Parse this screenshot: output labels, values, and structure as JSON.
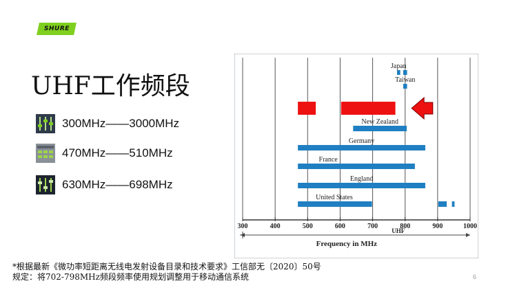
{
  "logo": {
    "text": "SHURE"
  },
  "slide": {
    "title": "UHF工作频段",
    "bands": [
      {
        "label": "300MHz——3000MHz",
        "icon": "mixer-sliders-icon"
      },
      {
        "label": "470MHz——510MHz",
        "icon": "frequency-grid-icon"
      },
      {
        "label": "630MHz——698MHz",
        "icon": "mixer-sliders-dark-icon"
      }
    ],
    "footnote_lines": [
      "*根据最新《微功率短距离无线电发射设备目录和技术要求》工信部无〔2020〕50号",
      "规定：将702-798MHz频段频率使用规划调整用于移动通信系统"
    ],
    "page_number": "6"
  },
  "chart_data": {
    "type": "bar",
    "orientation": "horizontal-ranges",
    "xlim": [
      300,
      1000
    ],
    "x_ticks": [
      300,
      400,
      500,
      600,
      700,
      800,
      900,
      1000
    ],
    "xlabel": "Frequency in MHz",
    "band_label": "UHF",
    "grid": true,
    "colors": {
      "allocation": "#1f7fc2",
      "highlight": "#ee1111",
      "axis": "#333333"
    },
    "series": [
      {
        "name": "Japan",
        "segments": [
          [
            775,
            785
          ],
          [
            794,
            806
          ]
        ]
      },
      {
        "name": "Taiwan",
        "segments": [
          [
            794,
            806
          ]
        ]
      },
      {
        "name": "New Zealand",
        "segments": [
          [
            640,
            805
          ]
        ]
      },
      {
        "name": "Germany",
        "segments": [
          [
            470,
            862
          ]
        ]
      },
      {
        "name": "France",
        "segments": [
          [
            470,
            830
          ]
        ]
      },
      {
        "name": "England",
        "segments": [
          [
            470,
            862
          ]
        ]
      },
      {
        "name": "United States",
        "segments": [
          [
            470,
            698
          ],
          [
            902,
            928
          ],
          [
            944,
            952
          ]
        ]
      }
    ],
    "highlights": [
      [
        470,
        525
      ],
      [
        603,
        770
      ],
      [
        820,
        885
      ]
    ],
    "highlight_arrow_index": 2
  }
}
